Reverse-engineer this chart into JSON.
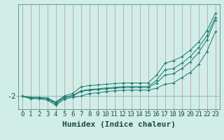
{
  "x": [
    0,
    1,
    2,
    3,
    4,
    5,
    6,
    7,
    8,
    9,
    10,
    11,
    12,
    13,
    14,
    15,
    16,
    17,
    18,
    19,
    20,
    21,
    22,
    23
  ],
  "y_line1": [
    -2.0,
    -2.15,
    -2.15,
    -2.2,
    -2.6,
    -2.15,
    -2.0,
    -1.65,
    -1.55,
    -1.5,
    -1.45,
    -1.4,
    -1.35,
    -1.35,
    -1.35,
    -1.35,
    -1.0,
    -0.4,
    -0.3,
    0.1,
    0.6,
    1.3,
    2.3,
    3.8
  ],
  "y_line2": [
    -2.0,
    -2.2,
    -2.2,
    -2.3,
    -2.7,
    -2.25,
    -2.1,
    -2.0,
    -1.8,
    -1.75,
    -1.65,
    -1.6,
    -1.55,
    -1.55,
    -1.55,
    -1.55,
    -1.4,
    -1.1,
    -1.0,
    -0.6,
    -0.2,
    0.4,
    1.4,
    2.9
  ],
  "y_line3": [
    -2.0,
    -2.1,
    -2.1,
    -2.15,
    -2.45,
    -2.0,
    -1.8,
    -1.3,
    -1.2,
    -1.15,
    -1.1,
    -1.05,
    -1.0,
    -1.0,
    -1.0,
    -1.0,
    -0.4,
    0.5,
    0.7,
    1.0,
    1.5,
    2.1,
    3.0,
    4.3
  ],
  "y_line4": [
    -2.0,
    -2.12,
    -2.12,
    -2.18,
    -2.52,
    -2.08,
    -1.95,
    -1.6,
    -1.5,
    -1.45,
    -1.38,
    -1.33,
    -1.28,
    -1.28,
    -1.28,
    -1.28,
    -0.8,
    0.0,
    0.1,
    0.5,
    1.0,
    1.7,
    2.6,
    4.0
  ],
  "line_color": "#1a7a6e",
  "marker": "+",
  "bg_color": "#d0ede8",
  "grid_color_v": "#c09090",
  "grid_color_h": "#90bab5",
  "xlabel": "Humidex (Indice chaleur)",
  "ytick_labels": [
    "-2"
  ],
  "ytick_values": [
    -2.0
  ],
  "xlim": [
    -0.5,
    23.5
  ],
  "ylim": [
    -3.0,
    5.0
  ],
  "xlabel_fontsize": 8,
  "tick_fontsize": 6.5
}
